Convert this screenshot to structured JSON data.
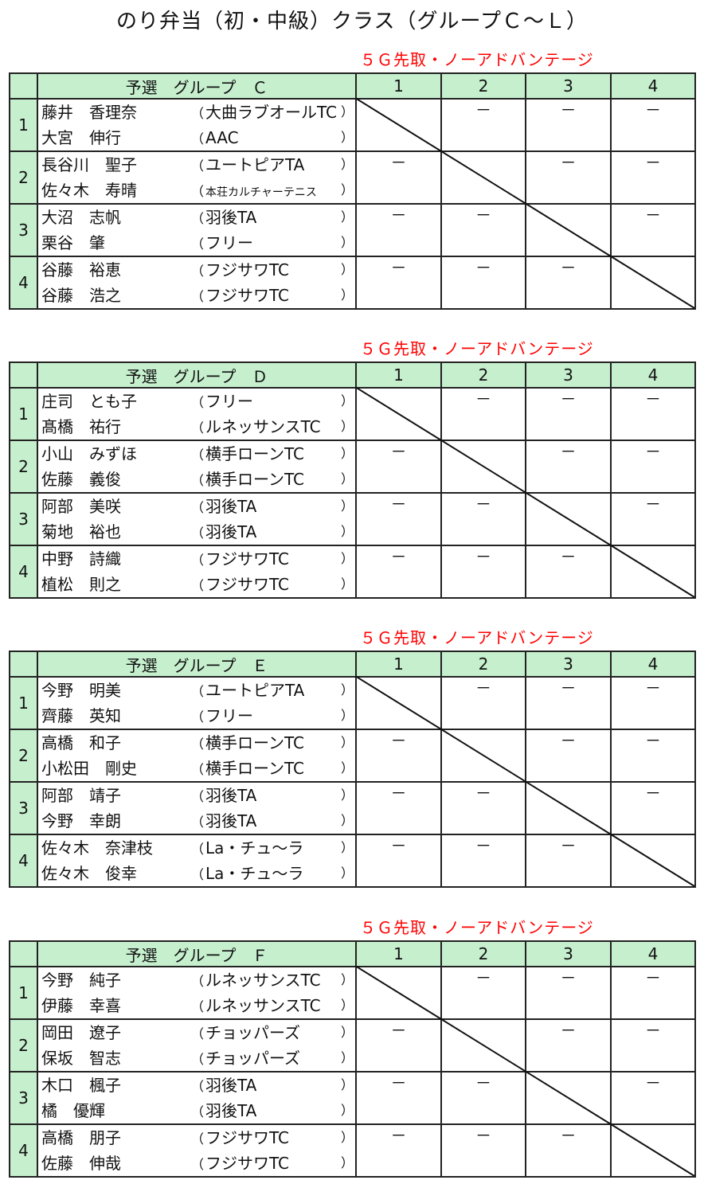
{
  "title": "のり弁当（初・中級）クラス（グループＣ～Ｌ）",
  "result_mark": "－",
  "colors": {
    "header_bg": "#c6efce",
    "note": "#ff0000",
    "result_mark": "#1a3fa0"
  },
  "groups": [
    {
      "note": "５Ｇ先取・ノーアドバンテージ",
      "header": "予選　グループ　Ｃ",
      "cols": [
        "1",
        "2",
        "3",
        "4"
      ],
      "entries": [
        {
          "seed": "1",
          "players": [
            {
              "name": "藤井　香理奈",
              "club": "大曲ラブオールTC"
            },
            {
              "name": "大宮　伸行",
              "club": "AAC"
            }
          ]
        },
        {
          "seed": "2",
          "players": [
            {
              "name": "長谷川　聖子",
              "club": "ユートピアTA"
            },
            {
              "name": "佐々木　寿晴",
              "club": "本荘カルチャーテニス",
              "small": true
            }
          ]
        },
        {
          "seed": "3",
          "players": [
            {
              "name": "大沼　志帆",
              "club": "羽後TA"
            },
            {
              "name": "栗谷　肇",
              "club": "フリー"
            }
          ]
        },
        {
          "seed": "4",
          "players": [
            {
              "name": "谷藤　裕恵",
              "club": "フジサワTC"
            },
            {
              "name": "谷藤　浩之",
              "club": "フジサワTC"
            }
          ]
        }
      ]
    },
    {
      "note": "５Ｇ先取・ノーアドバンテージ",
      "header": "予選　グループ　Ｄ",
      "cols": [
        "1",
        "2",
        "3",
        "4"
      ],
      "entries": [
        {
          "seed": "1",
          "players": [
            {
              "name": "庄司　とも子",
              "club": "フリー"
            },
            {
              "name": "髙橋　祐行",
              "club": "ルネッサンスTC"
            }
          ]
        },
        {
          "seed": "2",
          "players": [
            {
              "name": "小山　みずほ",
              "club": "横手ローンTC"
            },
            {
              "name": "佐藤　義俊",
              "club": "横手ローンTC"
            }
          ]
        },
        {
          "seed": "3",
          "players": [
            {
              "name": "阿部　美咲",
              "club": "羽後TA"
            },
            {
              "name": "菊地　裕也",
              "club": "羽後TA"
            }
          ]
        },
        {
          "seed": "4",
          "players": [
            {
              "name": "中野　詩織",
              "club": "フジサワTC"
            },
            {
              "name": "植松　則之",
              "club": "フジサワTC"
            }
          ]
        }
      ]
    },
    {
      "note": "５Ｇ先取・ノーアドバンテージ",
      "header": "予選　グループ　Ｅ",
      "cols": [
        "1",
        "2",
        "3",
        "4"
      ],
      "entries": [
        {
          "seed": "1",
          "players": [
            {
              "name": "今野　明美",
              "club": "ユートピアTA"
            },
            {
              "name": "齊藤　英知",
              "club": "フリー"
            }
          ]
        },
        {
          "seed": "2",
          "players": [
            {
              "name": "高橋　和子",
              "club": "横手ローンTC"
            },
            {
              "name": "小松田　剛史",
              "club": "横手ローンTC"
            }
          ]
        },
        {
          "seed": "3",
          "players": [
            {
              "name": "阿部　靖子",
              "club": "羽後TA"
            },
            {
              "name": "今野　幸朗",
              "club": "羽後TA"
            }
          ]
        },
        {
          "seed": "4",
          "players": [
            {
              "name": "佐々木　奈津枝",
              "club": "La・チュ～ラ"
            },
            {
              "name": "佐々木　俊幸",
              "club": "La・チュ～ラ"
            }
          ]
        }
      ]
    },
    {
      "note": "５Ｇ先取・ノーアドバンテージ",
      "header": "予選　グループ　Ｆ",
      "cols": [
        "1",
        "2",
        "3",
        "4"
      ],
      "entries": [
        {
          "seed": "1",
          "players": [
            {
              "name": "今野　純子",
              "club": "ルネッサンスTC"
            },
            {
              "name": "伊藤　幸喜",
              "club": "ルネッサンスTC"
            }
          ]
        },
        {
          "seed": "2",
          "players": [
            {
              "name": "岡田　遼子",
              "club": "チョッパーズ"
            },
            {
              "name": "保坂　智志",
              "club": "チョッパーズ"
            }
          ]
        },
        {
          "seed": "3",
          "players": [
            {
              "name": "木口　楓子",
              "club": "羽後TA"
            },
            {
              "name": "橘　優輝",
              "club": "羽後TA"
            }
          ]
        },
        {
          "seed": "4",
          "players": [
            {
              "name": "高橋　朋子",
              "club": "フジサワTC"
            },
            {
              "name": "佐藤　伸哉",
              "club": "フジサワTC"
            }
          ]
        }
      ]
    }
  ]
}
